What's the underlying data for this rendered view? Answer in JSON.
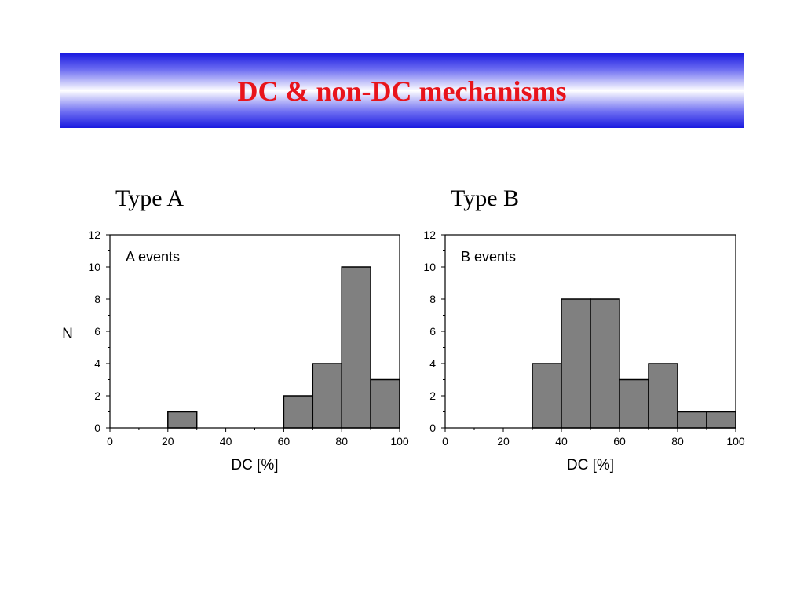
{
  "slide": {
    "title": "DC & non-DC mechanisms"
  },
  "chart_data": [
    {
      "type": "bar",
      "title": "Type A",
      "annotation": "A events",
      "xlabel": "DC [%]",
      "ylabel": "N",
      "bin_edges": [
        0,
        10,
        20,
        30,
        40,
        50,
        60,
        70,
        80,
        90,
        100
      ],
      "values": [
        0,
        0,
        1,
        0,
        0,
        0,
        2,
        4,
        10,
        3
      ],
      "xlim": [
        0,
        100
      ],
      "ylim": [
        0,
        12
      ],
      "xticks": [
        0,
        20,
        40,
        60,
        80,
        100
      ],
      "yticks": [
        0,
        2,
        4,
        6,
        8,
        10,
        12
      ],
      "bar_color": "#808080",
      "grid": false
    },
    {
      "type": "bar",
      "title": "Type B",
      "annotation": "B events",
      "xlabel": "DC [%]",
      "ylabel": "",
      "bin_edges": [
        0,
        10,
        20,
        30,
        40,
        50,
        60,
        70,
        80,
        90,
        100
      ],
      "values": [
        0,
        0,
        0,
        4,
        8,
        8,
        3,
        4,
        1,
        1
      ],
      "xlim": [
        0,
        100
      ],
      "ylim": [
        0,
        12
      ],
      "xticks": [
        0,
        20,
        40,
        60,
        80,
        100
      ],
      "yticks": [
        0,
        2,
        4,
        6,
        8,
        10,
        12
      ],
      "bar_color": "#808080",
      "grid": false
    }
  ]
}
